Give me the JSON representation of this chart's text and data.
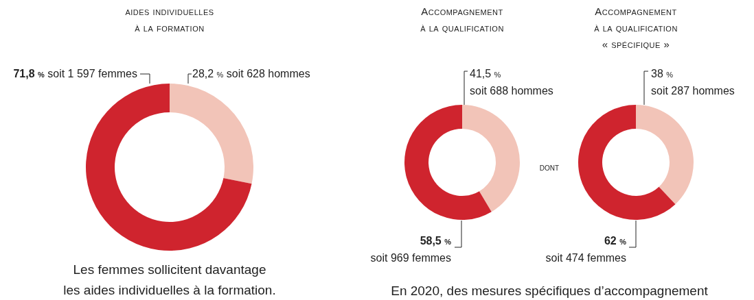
{
  "chart_data": [
    {
      "type": "donut",
      "title": "aides individuelles\nà la formation",
      "categories": [
        null,
        null
      ],
      "values": [
        28.2,
        71.8
      ],
      "colors": [
        "#f2c4b8",
        "#cf242e"
      ],
      "value_labels": [
        "28,2 % soit 628 hommes",
        "71,8 % soit 1 597 femmes"
      ],
      "annotations": [
        "Les femmes sollicitent davantage\nles aides individuelles à la formation."
      ]
    },
    {
      "type": "donut",
      "title": "Accompagnement\nà la qualification",
      "categories": [
        null,
        null
      ],
      "values": [
        41.5,
        58.5
      ],
      "colors": [
        "#f2c4b8",
        "#cf242e"
      ],
      "value_labels": [
        "41,5 %\nsoit 688 hommes",
        "58,5 %\nsoit 969 femmes"
      ],
      "annotations": [
        "En 2020, des mesures spécifiques d’accompagnement"
      ]
    },
    {
      "type": "donut",
      "title": "Accompagnement\nà la qualification\n« spécifique »",
      "categories": [
        null,
        null
      ],
      "values": [
        38,
        62
      ],
      "colors": [
        "#f2c4b8",
        "#cf242e"
      ],
      "value_labels": [
        "38 %\nsoit 287 hommes",
        "62 %\nsoit 474 femmes"
      ],
      "annotations": [
        "dont"
      ]
    }
  ]
}
